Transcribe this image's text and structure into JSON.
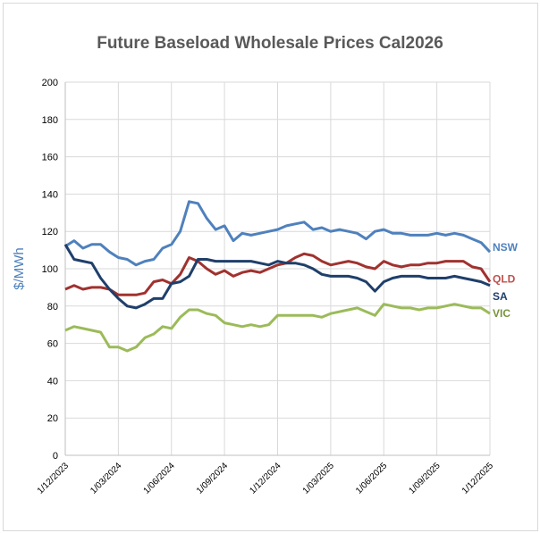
{
  "chart_data": {
    "type": "line",
    "title": "Future Baseload Wholesale Prices Cal2026",
    "xlabel": "",
    "ylabel": "$/MWh",
    "ylim": [
      0,
      200
    ],
    "yticks": [
      "0",
      "20",
      "40",
      "60",
      "80",
      "100",
      "120",
      "140",
      "160",
      "180",
      "200"
    ],
    "xlim_months": [
      0,
      24
    ],
    "xticks": [
      "1/12/2023",
      "1/03/2024",
      "1/06/2024",
      "1/09/2024",
      "1/12/2024",
      "1/03/2025",
      "1/06/2025",
      "1/09/2025",
      "1/12/2025"
    ],
    "x_months_from_start": [
      0,
      0.5,
      1,
      1.5,
      2,
      2.5,
      3,
      3.5,
      4,
      4.5,
      5,
      5.5,
      6,
      6.5,
      7,
      7.5,
      8,
      8.5,
      9,
      9.5,
      10,
      10.5,
      11,
      11.5,
      12,
      12.5,
      13,
      13.5,
      14,
      14.5,
      15,
      15.5,
      16,
      16.5,
      17,
      17.5,
      18,
      18.5,
      19,
      19.5,
      20,
      20.5,
      21,
      21.5,
      22,
      22.5,
      23,
      23.5,
      24
    ],
    "grid": true,
    "legend": "right-end labels",
    "series": [
      {
        "name": "NSW",
        "color": "#4f81bd",
        "label_color": "#4f81bd",
        "values": [
          112,
          115,
          111,
          113,
          113,
          109,
          106,
          105,
          102,
          104,
          105,
          111,
          113,
          120,
          136,
          135,
          127,
          121,
          123,
          115,
          119,
          118,
          119,
          120,
          121,
          123,
          124,
          125,
          121,
          122,
          120,
          121,
          120,
          119,
          116,
          120,
          121,
          119,
          119,
          118,
          118,
          118,
          119,
          118,
          119,
          118,
          116,
          114,
          109
        ]
      },
      {
        "name": "QLD",
        "color": "#a0322f",
        "label_color": "#c0504d",
        "values": [
          89,
          91,
          89,
          90,
          90,
          89,
          86,
          86,
          86,
          87,
          93,
          94,
          92,
          97,
          106,
          104,
          100,
          97,
          99,
          96,
          98,
          99,
          98,
          100,
          102,
          103,
          106,
          108,
          107,
          104,
          102,
          103,
          104,
          103,
          101,
          100,
          104,
          102,
          101,
          102,
          102,
          103,
          103,
          104,
          104,
          104,
          101,
          100,
          93
        ]
      },
      {
        "name": "SA",
        "color": "#1f3f6b",
        "label_color": "#1f3f6b",
        "values": [
          113,
          105,
          104,
          103,
          95,
          89,
          84,
          80,
          79,
          81,
          84,
          84,
          92,
          93,
          96,
          105,
          105,
          104,
          104,
          104,
          104,
          104,
          103,
          102,
          104,
          103,
          103,
          102,
          100,
          97,
          96,
          96,
          96,
          95,
          93,
          88,
          93,
          95,
          96,
          96,
          96,
          95,
          95,
          95,
          96,
          95,
          94,
          93,
          91
        ]
      },
      {
        "name": "VIC",
        "color": "#9bbb59",
        "label_color": "#77933c",
        "values": [
          67,
          69,
          68,
          67,
          66,
          58,
          58,
          56,
          58,
          63,
          65,
          69,
          68,
          74,
          78,
          78,
          76,
          75,
          71,
          70,
          69,
          70,
          69,
          70,
          75,
          75,
          75,
          75,
          75,
          74,
          76,
          77,
          78,
          79,
          77,
          75,
          81,
          80,
          79,
          79,
          78,
          79,
          79,
          80,
          81,
          80,
          79,
          79,
          76
        ]
      }
    ]
  }
}
